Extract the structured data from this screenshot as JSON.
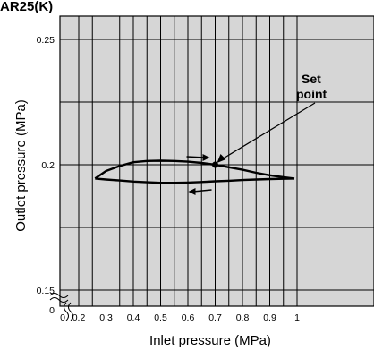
{
  "chart_data": {
    "type": "line",
    "title": "AR25(K)",
    "xlabel": "Inlet pressure (MPa)",
    "ylabel": "Outlet pressure (MPa)",
    "x_ticks": [
      "0",
      "0.2",
      "0.3",
      "0.4",
      "0.5",
      "0.6",
      "0.7",
      "0.8",
      "0.9",
      "1"
    ],
    "y_ticks": [
      "0",
      "0.15",
      "0.2",
      "0.25"
    ],
    "xlim": [
      0.1,
      1.05
    ],
    "ylim": [
      0.147,
      0.258
    ],
    "axis_break": true,
    "grid": true,
    "series": [
      {
        "name": "",
        "x": [
          0.26,
          0.3,
          0.35,
          0.4,
          0.45,
          0.5,
          0.55,
          0.6,
          0.65,
          0.7,
          0.75,
          0.8,
          0.85,
          0.9,
          0.95,
          0.99
        ],
        "y": [
          0.1945,
          0.1975,
          0.1995,
          0.201,
          0.2015,
          0.2016,
          0.2015,
          0.2012,
          0.2007,
          0.2,
          0.199,
          0.198,
          0.1968,
          0.1958,
          0.195,
          0.1945
        ]
      },
      {
        "name": "",
        "x": [
          0.26,
          0.3,
          0.35,
          0.4,
          0.45,
          0.5,
          0.55,
          0.6,
          0.65,
          0.7,
          0.75,
          0.8,
          0.85,
          0.9,
          0.95,
          0.99
        ],
        "y": [
          0.1945,
          0.1941,
          0.1937,
          0.1933,
          0.193,
          0.1928,
          0.1928,
          0.1929,
          0.1931,
          0.1934,
          0.1936,
          0.1939,
          0.1941,
          0.1943,
          0.1944,
          0.1945
        ]
      }
    ],
    "set_point": {
      "x": 0.7,
      "y": 0.2
    },
    "annotation": {
      "line1": "Set",
      "line2": "point"
    }
  },
  "colors": {
    "plot_bg": "#d6d6d6",
    "line": "#000000",
    "grid": "#000000"
  }
}
